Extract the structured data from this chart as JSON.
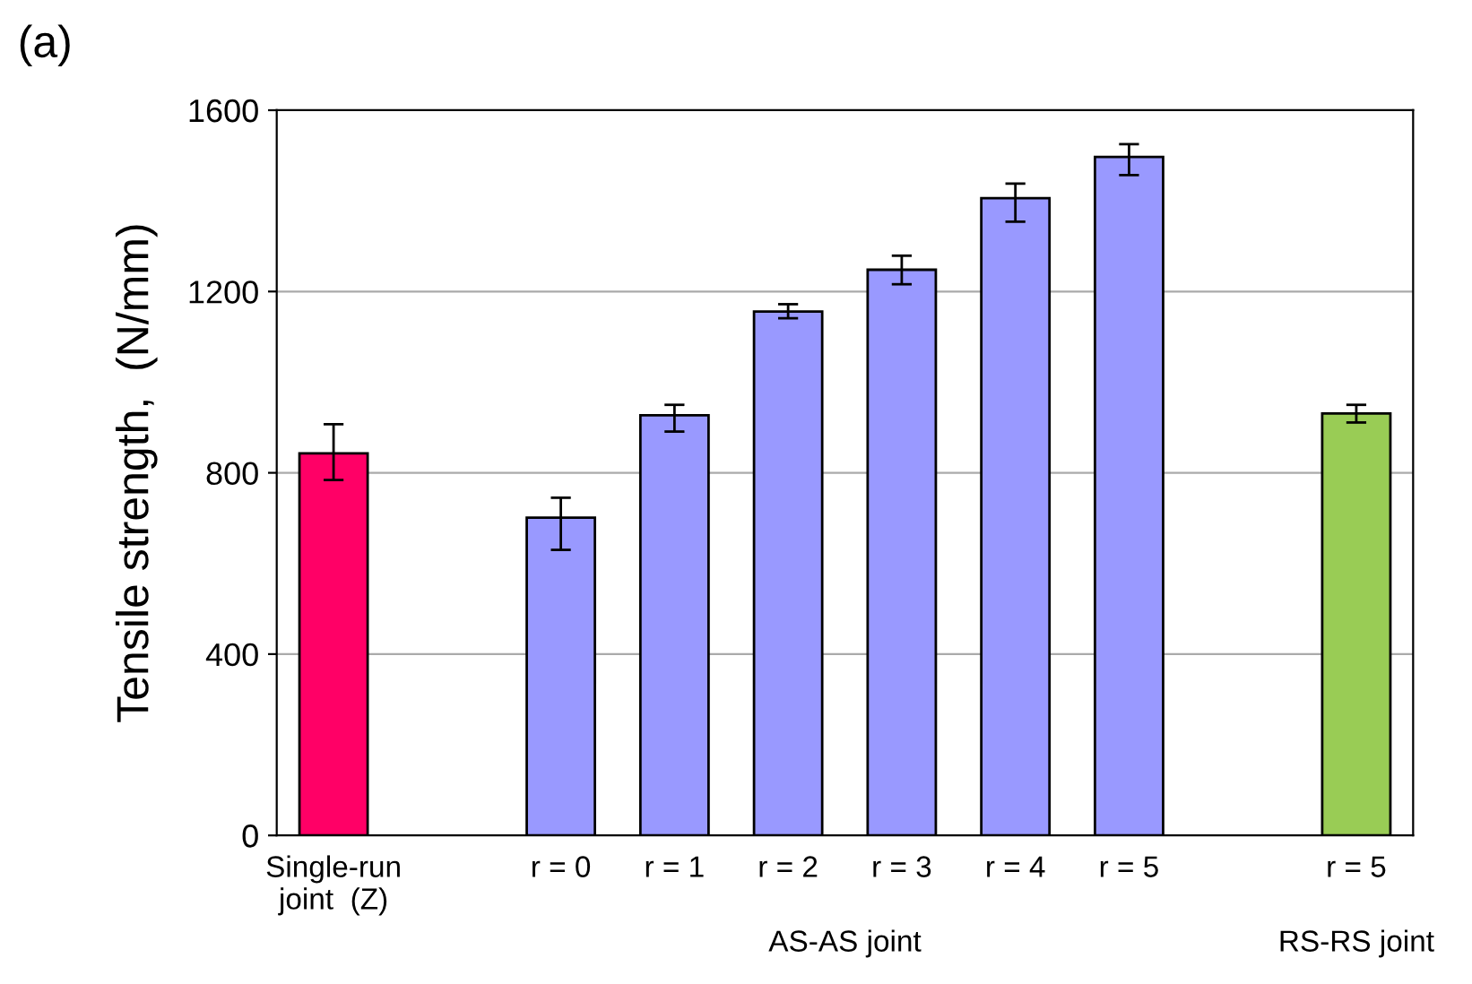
{
  "chart_data": {
    "type": "bar",
    "title": "(a)",
    "ylabel": "Tensile strength,  (N/mm)",
    "categories": [
      "Single-run\njoint  (Z)",
      null,
      "r = 0",
      "r = 1",
      "r = 2",
      "r = 3",
      "r = 4",
      "r = 5",
      null,
      "r = 5"
    ],
    "values": [
      843,
      null,
      701,
      927,
      1156,
      1248,
      1406,
      1497,
      null,
      931
    ],
    "errors": [
      [
        784,
        907
      ],
      null,
      [
        630,
        745
      ],
      [
        891,
        950
      ],
      [
        1141,
        1172
      ],
      [
        1216,
        1279
      ],
      [
        1354,
        1438
      ],
      [
        1457,
        1525
      ],
      null,
      [
        911,
        950
      ]
    ],
    "colors": [
      "#ff0066",
      null,
      "#9999ff",
      "#9999ff",
      "#9999ff",
      "#9999ff",
      "#9999ff",
      "#9999ff",
      null,
      "#99cc55"
    ],
    "ylim": [
      0,
      1600
    ],
    "yticks": [
      0,
      400,
      800,
      1200,
      1600
    ],
    "grid": "y",
    "annotations": [
      "AS-AS joint",
      "RS-RS joint"
    ]
  }
}
